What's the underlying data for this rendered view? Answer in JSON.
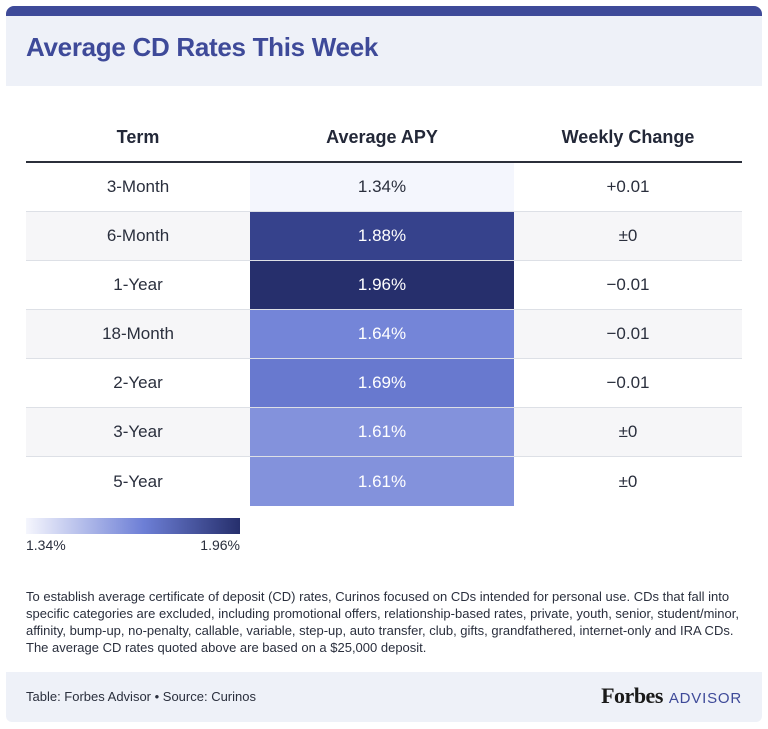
{
  "header": {
    "title": "Average CD Rates This Week"
  },
  "colors": {
    "accent": "#3e4a99",
    "scale_min": "#f5f6fd",
    "scale_max": "#262f6c"
  },
  "chart_data": {
    "type": "table",
    "title": "Average CD Rates This Week",
    "columns": [
      "Term",
      "Average APY",
      "Weekly Change"
    ],
    "rows": [
      {
        "term": "3-Month",
        "apy_label": "1.34%",
        "apy": 1.34,
        "change": "+0.01",
        "fill": "#f4f6fd"
      },
      {
        "term": "6-Month",
        "apy_label": "1.88%",
        "apy": 1.88,
        "change": "±0",
        "fill": "#36428c"
      },
      {
        "term": "1-Year",
        "apy_label": "1.96%",
        "apy": 1.96,
        "change": "−0.01",
        "fill": "#262f6c"
      },
      {
        "term": "18-Month",
        "apy_label": "1.64%",
        "apy": 1.64,
        "change": "−0.01",
        "fill": "#7485d8"
      },
      {
        "term": "2-Year",
        "apy_label": "1.69%",
        "apy": 1.69,
        "change": "−0.01",
        "fill": "#6879cf"
      },
      {
        "term": "3-Year",
        "apy_label": "1.61%",
        "apy": 1.61,
        "change": "±0",
        "fill": "#8392dc"
      },
      {
        "term": "5-Year",
        "apy_label": "1.61%",
        "apy": 1.61,
        "change": "±0",
        "fill": "#8392dc"
      }
    ],
    "legend": {
      "min_label": "1.34%",
      "max_label": "1.96%"
    }
  },
  "footnote": "To establish average certificate of deposit (CD) rates, Curinos focused on CDs intended for personal use. CDs that fall into specific categories are excluded, including promotional offers, relationship-based rates, private, youth, senior, student/minor, affinity, bump-up, no-penalty, callable, variable, step-up, auto transfer, club, gifts, grandfathered, internet-only and IRA CDs. The average CD rates quoted above are based on a $25,000 deposit.",
  "footer": {
    "source": "Table: Forbes Advisor • Source: Curinos",
    "brand_forbes": "Forbes",
    "brand_advisor": "ADVISOR"
  }
}
